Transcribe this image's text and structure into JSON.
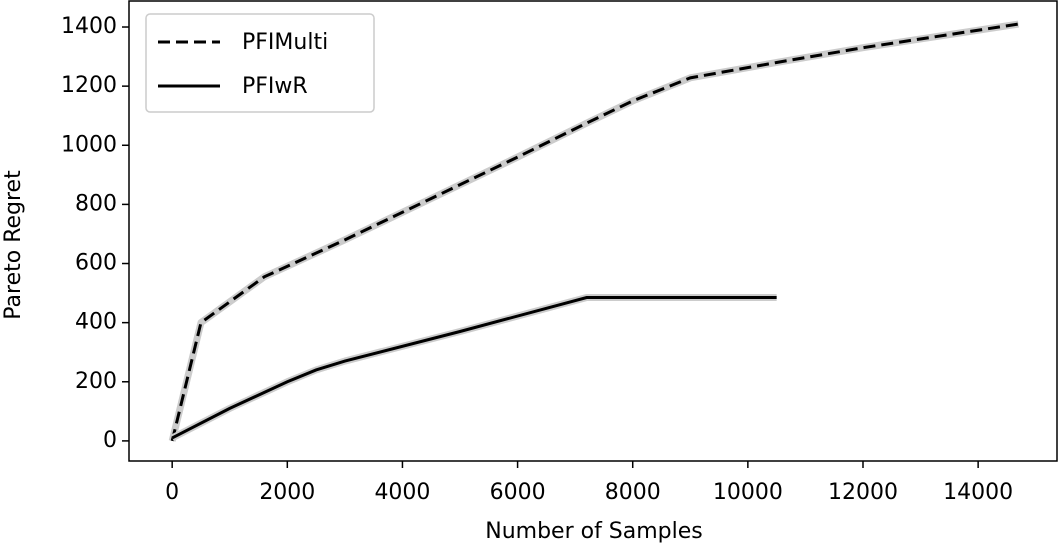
{
  "chart_data": {
    "type": "line",
    "xlabel": "Number of Samples",
    "ylabel": "Pareto Regret",
    "xlim": [
      -750,
      15370
    ],
    "ylim": [
      -68,
      1488
    ],
    "xticks": [
      0,
      2000,
      4000,
      6000,
      8000,
      10000,
      12000,
      14000
    ],
    "yticks": [
      0,
      200,
      400,
      600,
      800,
      1000,
      1200,
      1400
    ],
    "legend": "upper left",
    "series": [
      {
        "name": "PFIMulti",
        "color": "#000000",
        "dash": "dashed",
        "x": [
          0,
          500,
          1600,
          3000,
          4500,
          6000,
          7200,
          8000,
          9000,
          10500,
          12000,
          14700
        ],
        "values": [
          0,
          400,
          555,
          680,
          820,
          960,
          1075,
          1150,
          1228,
          1280,
          1330,
          1410
        ]
      },
      {
        "name": "PFIwR",
        "color": "#000000",
        "dash": "solid",
        "x": [
          0,
          1000,
          2000,
          2500,
          3000,
          5000,
          7200,
          10500
        ],
        "values": [
          10,
          110,
          200,
          240,
          270,
          370,
          485,
          485
        ]
      }
    ]
  }
}
